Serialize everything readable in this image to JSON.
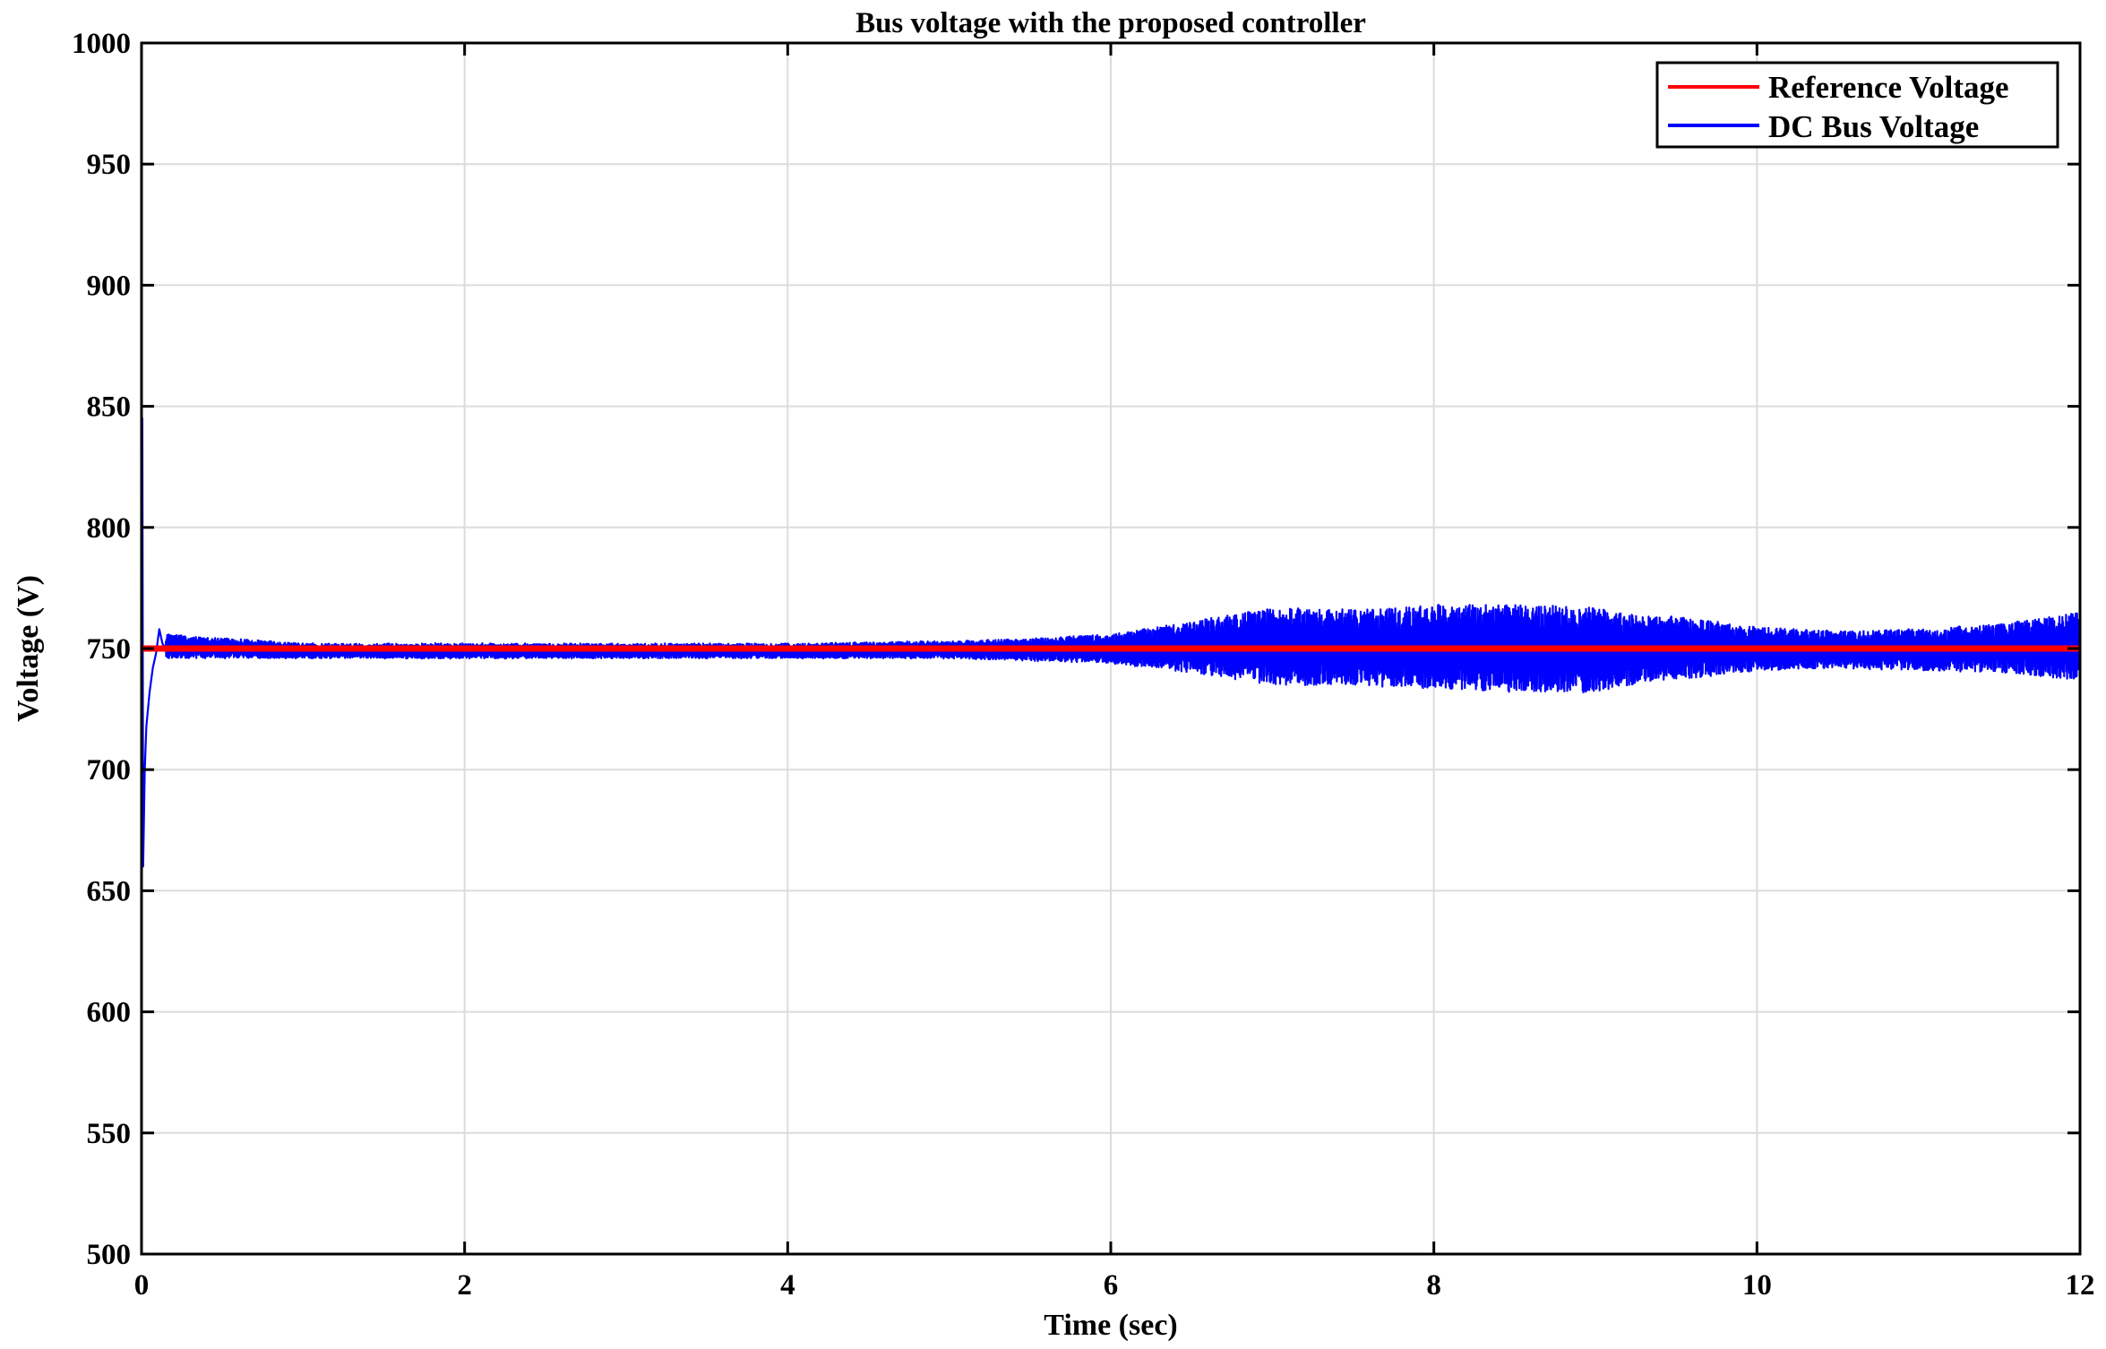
{
  "chart_data": {
    "type": "line",
    "title": "Bus voltage with the proposed controller",
    "xlabel": "Time (sec)",
    "ylabel": "Voltage (V)",
    "xlim": [
      0,
      12
    ],
    "ylim": [
      500,
      1000
    ],
    "x_ticks": [
      0,
      2,
      4,
      6,
      8,
      10,
      12
    ],
    "y_ticks": [
      500,
      550,
      600,
      650,
      700,
      750,
      800,
      850,
      900,
      950,
      1000
    ],
    "grid": true,
    "legend_position": "top-right",
    "series": [
      {
        "name": "Reference Voltage",
        "color": "#ff0000",
        "x": [
          0,
          12
        ],
        "y": [
          750,
          750
        ]
      },
      {
        "name": "DC Bus Voltage",
        "color": "#0000ff",
        "startup": {
          "x": [
            0,
            0.005,
            0.01,
            0.02,
            0.03,
            0.05,
            0.07,
            0.09,
            0.11,
            0.13,
            0.15
          ],
          "y": [
            500,
            845,
            660,
            700,
            718,
            732,
            742,
            748,
            758,
            752,
            750
          ]
        },
        "envelope": {
          "x": [
            0.15,
            1.0,
            2.0,
            3.0,
            4.0,
            5.0,
            5.5,
            6.0,
            6.5,
            7.0,
            7.5,
            8.0,
            8.5,
            9.0,
            9.2,
            9.5,
            10.0,
            10.5,
            11.0,
            11.5,
            12.0
          ],
          "upper": [
            756,
            752,
            752,
            752,
            752,
            753,
            754,
            756,
            761,
            767,
            766,
            768,
            768,
            767,
            764,
            763,
            759,
            757,
            758,
            760,
            765
          ],
          "lower": [
            746,
            746,
            746,
            746,
            746,
            746,
            745,
            744,
            740,
            735,
            735,
            733,
            732,
            732,
            735,
            737,
            741,
            742,
            741,
            740,
            737
          ]
        }
      }
    ]
  }
}
